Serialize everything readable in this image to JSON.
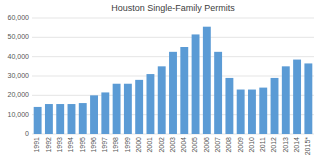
{
  "chart_data": {
    "type": "bar",
    "title": "Houston Single-Family Permits",
    "categories": [
      "1991",
      "1992",
      "1993",
      "1994",
      "1995",
      "1996",
      "1997",
      "1998",
      "1999",
      "2000",
      "2001",
      "2002",
      "2003",
      "2004",
      "2005",
      "2006",
      "2007",
      "2008",
      "2009",
      "2010",
      "2011",
      "2012",
      "2013",
      "2014",
      "2015*"
    ],
    "values": [
      14000,
      15500,
      15500,
      15500,
      16000,
      20000,
      21500,
      26000,
      26000,
      28000,
      31000,
      35000,
      42500,
      45000,
      51500,
      55500,
      42500,
      29000,
      23000,
      23000,
      24000,
      29000,
      35000,
      38500,
      36500
    ],
    "color": "#5B9BD5",
    "ylim": [
      0,
      60000
    ],
    "yticks": [
      0,
      {
        "value": 10000,
        "label": "10,000"
      },
      {
        "value": 20000,
        "label": "20,000"
      },
      {
        "value": 30000,
        "label": "30,000"
      },
      {
        "value": 40000,
        "label": "40,000"
      },
      {
        "value": 50000,
        "label": "50,000"
      },
      {
        "value": 60000,
        "label": "60,000"
      }
    ],
    "grid": true
  }
}
